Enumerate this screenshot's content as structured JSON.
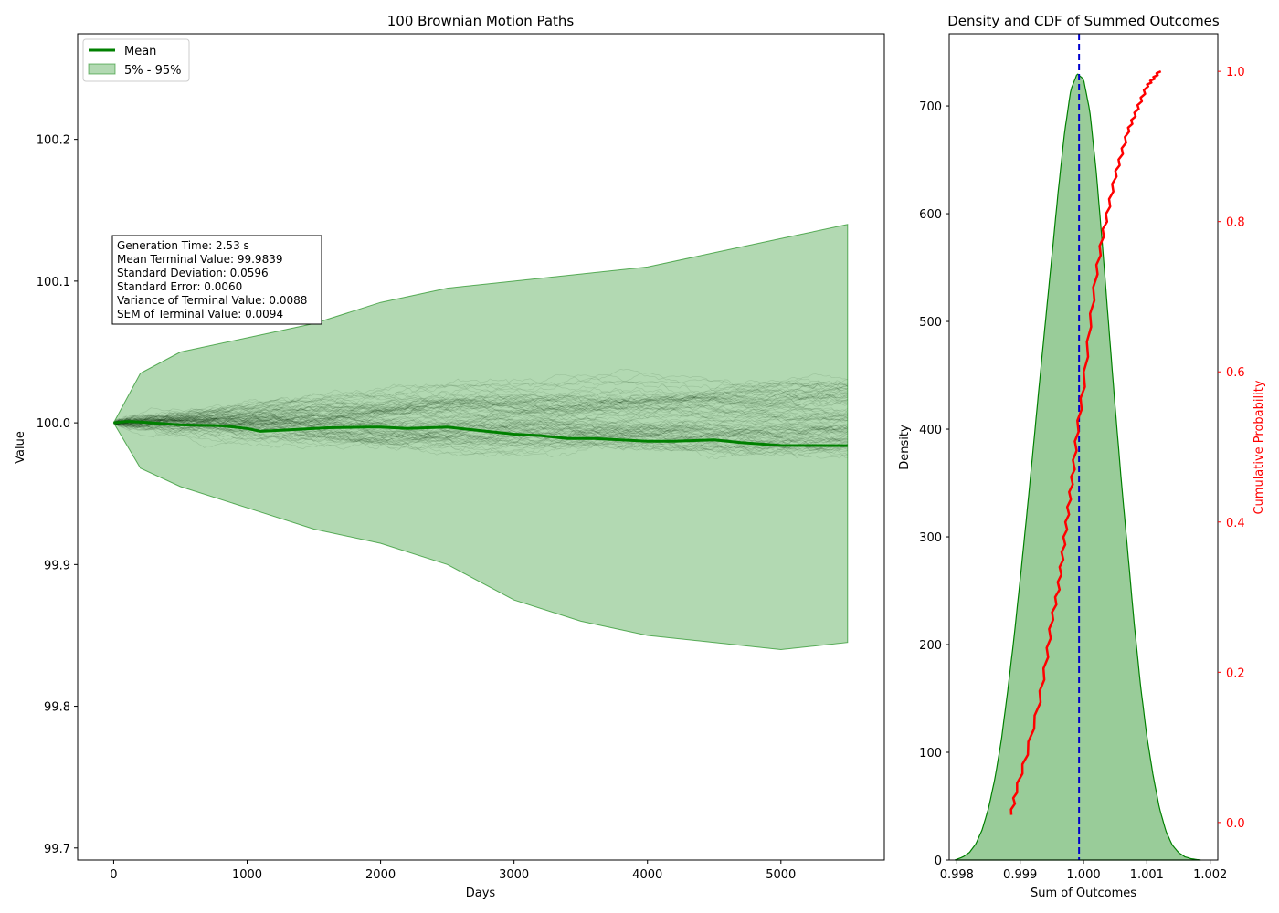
{
  "chart_data": [
    {
      "type": "line",
      "title": "100 Brownian Motion Paths",
      "xlabel": "Days",
      "ylabel": "Value",
      "xlim": [
        -270,
        5775
      ],
      "ylim": [
        99.6915,
        100.2745
      ],
      "xticks": [
        0,
        1000,
        2000,
        3000,
        4000,
        5000
      ],
      "xtick_labels": [
        "0",
        "1000",
        "2000",
        "3000",
        "4000",
        "5000"
      ],
      "yticks": [
        99.7,
        99.8,
        99.9,
        100.0,
        100.1,
        100.2
      ],
      "ytick_labels": [
        "99.7",
        "99.8",
        "99.9",
        "100.0",
        "100.1",
        "100.2"
      ],
      "n_paths": 100,
      "n_days": 5500,
      "start_value": 100.0,
      "path_color": "#000000",
      "legend": {
        "placement": "top-left",
        "entries": [
          {
            "label": "Mean",
            "color": "#008000",
            "kind": "line"
          },
          {
            "label": "5% - 95%",
            "color": "#008000",
            "kind": "band"
          }
        ]
      },
      "mean_series": {
        "name": "Mean",
        "color": "#008000",
        "x": [
          0,
          100,
          200,
          500,
          800,
          1000,
          1100,
          1300,
          1600,
          1900,
          2000,
          2200,
          2500,
          2700,
          3000,
          3200,
          3400,
          3600,
          3800,
          4000,
          4200,
          4500,
          4700,
          5000,
          5500
        ],
        "y": [
          100.0,
          100.001,
          100.0005,
          99.9985,
          99.998,
          99.996,
          99.994,
          99.995,
          99.9965,
          99.997,
          99.997,
          99.996,
          99.997,
          99.995,
          99.992,
          99.991,
          99.989,
          99.989,
          99.988,
          99.987,
          99.987,
          99.988,
          99.986,
          99.984,
          99.9839
        ]
      },
      "band_5_95": {
        "name": "5% - 95%",
        "color": "#008000",
        "x": [
          0,
          200,
          500,
          1000,
          1500,
          2000,
          2500,
          3000,
          3500,
          4000,
          4500,
          5000,
          5500
        ],
        "upper": [
          100.0,
          100.035,
          100.05,
          100.06,
          100.07,
          100.085,
          100.095,
          100.1,
          100.105,
          100.11,
          100.12,
          100.13,
          100.14
        ],
        "lower": [
          100.0,
          99.968,
          99.955,
          99.94,
          99.925,
          99.915,
          99.9,
          99.875,
          99.86,
          99.85,
          99.845,
          99.84,
          99.845
        ]
      },
      "annotations": [
        "Generation Time: 2.53 s",
        "Mean Terminal Value: 99.9839",
        "Standard Deviation: 0.0596",
        "Standard Error: 0.0060",
        "Variance of Terminal Value: 0.0088",
        "SEM of Terminal Value: 0.0094"
      ]
    },
    {
      "type": "area",
      "title": "Density and CDF of Summed Outcomes",
      "xlabel": "Sum of Outcomes",
      "ylabel": "Density",
      "ylabel_right": "Cumulative Probability",
      "xlim": [
        0.99788,
        1.00212
      ],
      "ylim": [
        0,
        767
      ],
      "ylim_right": [
        -0.05,
        1.05
      ],
      "xticks": [
        0.998,
        0.999,
        1.0,
        1.001,
        1.002
      ],
      "xtick_labels": [
        "0.998",
        "0.999",
        "1.000",
        "1.001",
        "1.002"
      ],
      "yticks": [
        0,
        100,
        200,
        300,
        400,
        500,
        600,
        700
      ],
      "ytick_labels": [
        "0",
        "100",
        "200",
        "300",
        "400",
        "500",
        "600",
        "700"
      ],
      "yticks_right": [
        0.0,
        0.2,
        0.4,
        0.6,
        0.8,
        1.0
      ],
      "ytick_labels_right": [
        "0.0",
        "0.2",
        "0.4",
        "0.6",
        "0.8",
        "1.0"
      ],
      "density_color": "#008000",
      "cdf_color": "#ff0000",
      "mean_line": {
        "x": 0.99993,
        "color": "#0000cc",
        "style": "dashed"
      },
      "density": {
        "x": [
          0.99797,
          0.9981,
          0.9982,
          0.9983,
          0.9984,
          0.9985,
          0.9986,
          0.9987,
          0.9988,
          0.9989,
          0.999,
          0.9991,
          0.9992,
          0.9993,
          0.9994,
          0.9995,
          0.9996,
          0.9997,
          0.9998,
          0.9999,
          1.0,
          1.0001,
          1.0002,
          1.0003,
          1.0004,
          1.0005,
          1.0006,
          1.0007,
          1.0008,
          1.0009,
          1.001,
          1.0011,
          1.0012,
          1.0013,
          1.0014,
          1.0015,
          1.0016,
          1.0017,
          1.0018,
          1.00185
        ],
        "y": [
          0,
          3,
          7,
          15,
          28,
          48,
          75,
          110,
          155,
          205,
          260,
          318,
          378,
          440,
          500,
          560,
          620,
          675,
          715,
          730,
          725,
          695,
          640,
          570,
          495,
          420,
          350,
          285,
          220,
          162,
          115,
          78,
          48,
          27,
          14,
          7,
          3,
          1.2,
          0.4,
          0
        ]
      },
      "cdf": {
        "x": [
          0.99986,
          0.99893,
          0.9991,
          0.9993,
          0.99942,
          0.9995,
          0.9996,
          0.99966,
          0.99972,
          0.99978,
          0.99984,
          0.9999,
          1.0,
          1.0001,
          1.0002,
          1.0003,
          1.0004,
          1.0005,
          1.0006,
          1.0007,
          1.0008,
          1.0009,
          1.001,
          1.0011,
          1.0012
        ],
        "y": [
          0.01,
          0.04,
          0.09,
          0.16,
          0.22,
          0.27,
          0.31,
          0.35,
          0.39,
          0.43,
          0.47,
          0.52,
          0.58,
          0.66,
          0.73,
          0.78,
          0.82,
          0.86,
          0.89,
          0.92,
          0.94,
          0.96,
          0.98,
          0.99,
          1.0
        ]
      }
    }
  ]
}
